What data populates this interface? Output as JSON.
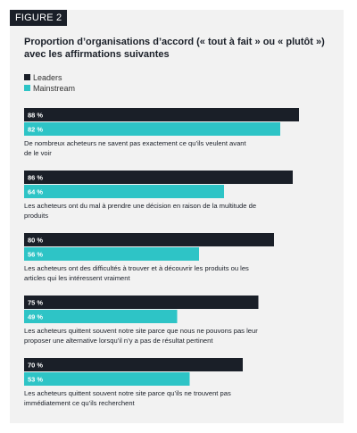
{
  "figure_label": "FIGURE 2",
  "colors": {
    "leaders": "#1a1f28",
    "mainstream": "#2ec4c6",
    "panel": "#f2f2f2"
  },
  "chart_data": {
    "type": "bar",
    "orientation": "horizontal",
    "title": "Proportion d’organisations d’accord (« tout à fait » ou « plutôt ») avec les affirmations suivantes",
    "legend": [
      "Leaders",
      "Mainstream"
    ],
    "categories": [
      [
        "De nombreux acheteurs ne savent pas exactement ce qu’ils veulent avant",
        "de le voir"
      ],
      [
        "Les acheteurs ont du mal à prendre une décision en raison de la multitude de",
        "produits"
      ],
      [
        "Les acheteurs ont des difficultés à trouver et à découvrir les produits ou les",
        "articles qui les intéressent vraiment"
      ],
      [
        "Les acheteurs quittent souvent notre site parce que nous ne pouvons pas leur",
        "proposer une alternative lorsqu’il n’y a pas de résultat pertinent"
      ],
      [
        "Les acheteurs quittent souvent notre site parce qu’ils ne trouvent pas",
        "immédiatement ce qu’ils recherchent"
      ]
    ],
    "series": [
      {
        "name": "Leaders",
        "values": [
          88,
          86,
          80,
          75,
          70
        ],
        "labels": [
          "88 %",
          "86 %",
          "80 %",
          "75 %",
          "70 %"
        ]
      },
      {
        "name": "Mainstream",
        "values": [
          82,
          64,
          56,
          49,
          53
        ],
        "labels": [
          "82 %",
          "64 %",
          "56 %",
          "49 %",
          "53 %"
        ]
      }
    ],
    "xlim": [
      0,
      100
    ]
  }
}
